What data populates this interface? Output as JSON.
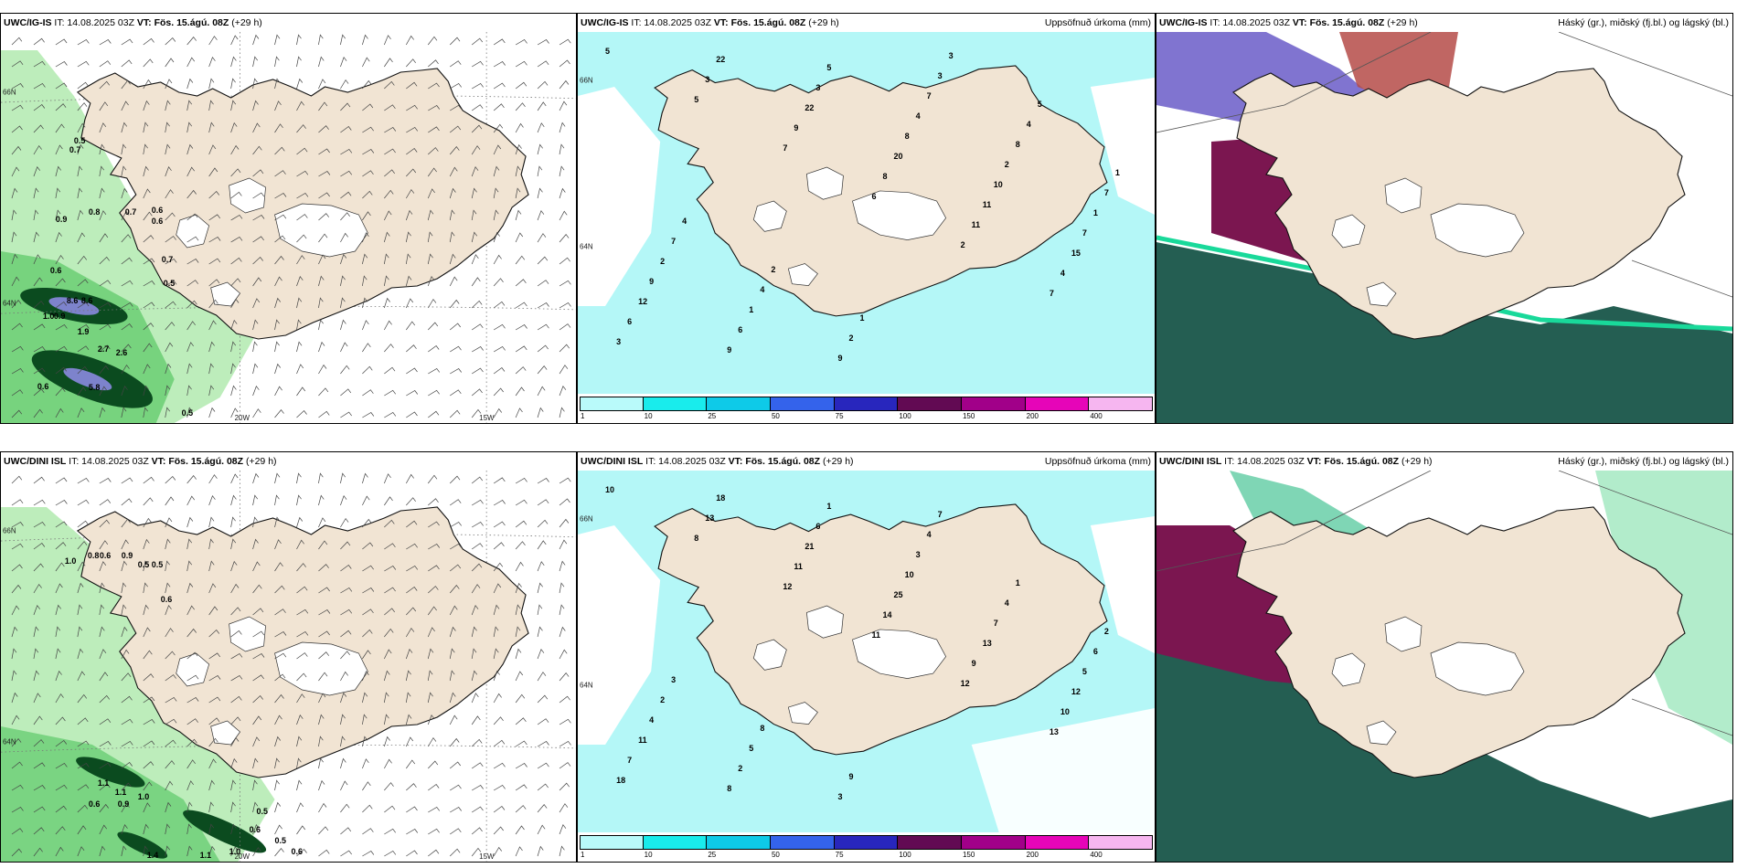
{
  "rows": [
    {
      "model": "UWC/IG-IS",
      "issue": "IT: 14.08.2025 03Z",
      "vt_prefix": "VT:",
      "vt": "Fös. 15.ágú. 08Z",
      "lead": "(+29 h)",
      "precip_title": "Uppsöfnuð úrkoma (mm)",
      "cloud_title": "Háský (gr.), miðský (fj.bl.) og lágský (bl.)",
      "wind_labels": [
        "0.5",
        "0.7",
        "0.8",
        "0.9",
        "0.7",
        "0.6",
        "0.6",
        "0.7",
        "0.5",
        "0.6",
        "8.6",
        "8.6",
        "1.0",
        "0.9",
        "1.9",
        "2.7",
        "2.6",
        "0.6",
        "5.8",
        "0.5"
      ],
      "precip_labels": [
        "5",
        "5",
        "7",
        "6",
        "2",
        "7",
        "3",
        "3",
        "9",
        "8",
        "11",
        "4",
        "6",
        "22",
        "22",
        "20",
        "11",
        "15",
        "12",
        "9",
        "3",
        "8",
        "10",
        "7",
        "9",
        "6",
        "5",
        "4",
        "2",
        "1",
        "2",
        "1",
        "9",
        "7",
        "8",
        "7",
        "7",
        "4",
        "2",
        "3",
        "4",
        "1",
        "4",
        "2",
        "1",
        "3",
        "5"
      ]
    },
    {
      "model": "UWC/DINI ISL",
      "issue": "IT: 14.08.2025 03Z",
      "vt_prefix": "VT:",
      "vt": "Fös. 15.ágú. 08Z",
      "lead": "(+29 h)",
      "precip_title": "Uppsöfnuð úrkoma (mm)",
      "cloud_title": "Háský (gr.), miðský (fj.bl.) og lágský (bl.)",
      "wind_labels": [
        "1.0",
        "0.8",
        "0.6",
        "0.9",
        "0.5",
        "0.5",
        "0.6",
        "1.1",
        "1.1",
        "0.9",
        "1.0",
        "0.6",
        "0.5",
        "0.6",
        "0.5",
        "0.6",
        "1.1",
        "1.0",
        "1.4"
      ],
      "precip_labels": [
        "10",
        "8",
        "12",
        "11",
        "12",
        "13",
        "18",
        "13",
        "11",
        "14",
        "9",
        "10",
        "7",
        "18",
        "21",
        "25",
        "13",
        "12",
        "11",
        "8",
        "6",
        "10",
        "7",
        "5",
        "4",
        "2",
        "1",
        "3",
        "4",
        "6",
        "2",
        "5",
        "3",
        "4",
        "1",
        "2",
        "3",
        "8",
        "9",
        "7"
      ]
    }
  ],
  "axis": {
    "lon1": "20W",
    "lon2": "15W",
    "lat1": "66N",
    "lat2": "64N"
  },
  "colorbar": {
    "ticks": [
      "1",
      "10",
      "25",
      "50",
      "75",
      "100",
      "150",
      "200",
      "400"
    ],
    "colors": [
      "#b9fafa",
      "#19ecec",
      "#0ecae8",
      "#3463eb",
      "#2826bd",
      "#620a53",
      "#a10089",
      "#e605b8",
      "#f6b6f0"
    ]
  },
  "colors": {
    "land": "#f1e4d3",
    "sea": "#ffffff",
    "precip_light": "#b4f7f7",
    "precip_med": "#3fe0ee",
    "wind_green_light": "#b6ebb4",
    "wind_green": "#6fcf78",
    "wind_dark": "#0b4b1f",
    "low_cloud": "#245e52",
    "mid_cloud": "#7b1650",
    "high_cloud": "#6a5cc8"
  }
}
